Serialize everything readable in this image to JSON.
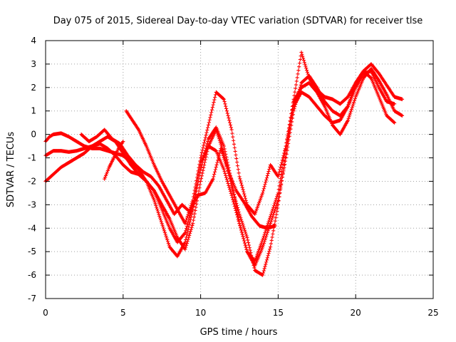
{
  "chart_data": {
    "type": "scatter",
    "title": "Day 075 of 2015, Sidereal Day-to-day VTEC variation (SDTVAR) for receiver tlse",
    "xlabel": "GPS time / hours",
    "ylabel": "SDTVAR / TECUs",
    "xlim": [
      0,
      25
    ],
    "ylim": [
      -7,
      4
    ],
    "xticks": [
      0,
      5,
      10,
      15,
      20,
      25
    ],
    "yticks": [
      -7,
      -6,
      -5,
      -4,
      -3,
      -2,
      -1,
      0,
      1,
      2,
      3,
      4
    ],
    "grid": true,
    "legend": "none",
    "marker": "+",
    "color": "#ff0000",
    "series": [
      {
        "x": [
          0.0,
          0.25,
          0.5,
          1.0,
          1.5,
          2.0,
          2.5,
          3.0,
          3.5,
          4.0,
          4.5,
          5.0,
          5.5,
          6.0,
          6.5,
          7.0,
          7.5,
          8.0,
          8.5,
          9.0,
          9.5,
          10.0,
          10.5,
          11.0,
          11.5,
          12.0,
          12.5,
          13.0,
          13.5,
          14.0,
          14.5,
          15.0,
          15.5,
          16.0,
          16.5,
          17.0,
          17.5,
          18.0,
          18.5,
          19.0,
          19.5,
          20.0,
          20.5,
          21.0,
          21.5,
          22.0,
          22.5
        ],
        "y": [
          -0.3,
          -0.1,
          0.0,
          0.05,
          -0.1,
          -0.3,
          -0.5,
          -0.6,
          -0.6,
          -0.7,
          -0.8,
          -0.9,
          -1.2,
          -1.5,
          -2.0,
          -2.8,
          -3.8,
          -4.8,
          -5.2,
          -4.6,
          -3.2,
          -1.5,
          -0.2,
          0.3,
          -0.5,
          -2.0,
          -3.8,
          -5.0,
          -5.4,
          -4.5,
          -3.5,
          -2.5,
          -0.5,
          1.2,
          1.8,
          1.6,
          1.2,
          0.8,
          0.5,
          0.6,
          1.2,
          2.2,
          2.7,
          2.4,
          1.6,
          0.8,
          0.5
        ]
      },
      {
        "x": [
          0.0,
          0.5,
          1.0,
          1.5,
          2.0,
          2.5,
          3.0,
          3.5,
          4.0,
          4.5,
          5.0,
          5.5,
          6.0,
          6.5,
          7.0,
          7.5,
          8.0,
          8.5,
          9.0,
          9.5,
          10.0,
          10.5,
          11.0,
          11.5,
          12.0,
          12.5,
          13.0,
          13.5,
          14.0,
          14.5,
          15.0,
          15.5,
          16.0,
          16.5,
          17.0,
          17.5,
          18.0,
          18.5,
          19.0,
          19.5,
          20.0,
          20.5,
          21.0,
          21.5,
          22.0,
          22.5
        ],
        "y": [
          -0.9,
          -0.7,
          -0.7,
          -0.75,
          -0.7,
          -0.6,
          -0.5,
          -0.4,
          -0.6,
          -0.9,
          -1.3,
          -1.6,
          -1.7,
          -2.0,
          -2.4,
          -3.2,
          -4.0,
          -4.6,
          -4.2,
          -3.0,
          -1.2,
          -0.5,
          -0.7,
          -1.5,
          -2.6,
          -3.8,
          -5.0,
          -5.6,
          -4.8,
          -3.8,
          -2.8,
          -1.0,
          1.0,
          2.2,
          2.5,
          2.0,
          1.4,
          1.0,
          0.8,
          1.2,
          2.0,
          2.6,
          2.7,
          2.0,
          1.4,
          1.3
        ]
      },
      {
        "x": [
          0.0,
          0.5,
          1.0,
          1.5,
          2.0,
          2.5,
          3.0,
          3.5,
          4.0,
          4.5,
          5.0,
          5.5,
          6.0,
          6.5,
          7.0,
          7.5,
          8.0,
          8.5,
          9.0,
          9.5,
          10.0,
          10.5,
          11.0,
          11.5,
          12.0,
          12.5,
          13.0,
          13.5,
          14.0,
          14.5,
          15.0,
          15.5,
          16.0,
          16.5,
          17.0,
          17.5,
          18.0,
          18.5,
          19.0,
          19.5,
          20.0,
          20.5,
          21.0,
          21.5,
          22.0,
          22.5,
          23.0
        ],
        "y": [
          -2.0,
          -1.7,
          -1.4,
          -1.2,
          -1.0,
          -0.8,
          -0.5,
          -0.3,
          -0.1,
          -0.3,
          -0.8,
          -1.3,
          -1.7,
          -2.0,
          -2.4,
          -3.0,
          -3.6,
          -4.4,
          -4.9,
          -3.8,
          -2.0,
          -0.5,
          0.2,
          -0.8,
          -2.2,
          -3.4,
          -4.4,
          -5.8,
          -6.0,
          -4.8,
          -3.0,
          -0.8,
          1.4,
          2.0,
          2.2,
          1.8,
          1.2,
          0.4,
          0.0,
          0.6,
          1.6,
          2.4,
          2.8,
          2.3,
          1.7,
          1.0,
          0.8
        ]
      },
      {
        "x": [
          5.2,
          5.5,
          6.0,
          6.5,
          7.0,
          7.5,
          8.0,
          8.5,
          9.0,
          9.5,
          10.0,
          10.5,
          11.0,
          11.5,
          12.0,
          12.5,
          13.0,
          13.5,
          14.0,
          14.5,
          15.0,
          15.5,
          16.0,
          16.5,
          17.0,
          17.5,
          18.0,
          18.5,
          19.0,
          19.5,
          20.0,
          20.5,
          21.0,
          21.5,
          22.0,
          22.5,
          23.0
        ],
        "y": [
          1.0,
          0.7,
          0.2,
          -0.5,
          -1.3,
          -2.0,
          -2.6,
          -3.2,
          -3.8,
          -2.8,
          -1.0,
          0.4,
          1.8,
          1.5,
          0.2,
          -1.8,
          -3.0,
          -3.4,
          -2.5,
          -1.3,
          -1.8,
          -0.5,
          1.5,
          3.5,
          2.4,
          1.9,
          1.6,
          1.5,
          1.3,
          1.6,
          2.2,
          2.7,
          3.0,
          2.6,
          2.1,
          1.6,
          1.5
        ]
      },
      {
        "x": [
          2.3,
          2.8,
          3.3,
          3.8,
          4.3,
          4.8,
          5.3,
          5.8,
          6.3,
          6.8,
          7.3,
          7.8,
          8.3,
          8.8,
          9.3,
          9.8,
          10.3,
          10.8,
          11.3,
          11.8,
          12.3,
          12.8,
          13.3,
          13.8,
          14.3,
          14.8
        ],
        "y": [
          0.0,
          -0.3,
          -0.1,
          0.2,
          -0.2,
          -0.4,
          -0.9,
          -1.3,
          -1.6,
          -1.8,
          -2.2,
          -2.8,
          -3.4,
          -3.0,
          -3.3,
          -2.6,
          -2.5,
          -1.9,
          -0.6,
          -1.6,
          -2.4,
          -2.9,
          -3.5,
          -3.9,
          -4.0,
          -3.9
        ]
      },
      {
        "x": [
          3.8,
          4.1,
          4.4,
          4.7,
          5.0
        ],
        "y": [
          -1.9,
          -1.4,
          -1.0,
          -0.6,
          -0.3
        ]
      }
    ]
  }
}
